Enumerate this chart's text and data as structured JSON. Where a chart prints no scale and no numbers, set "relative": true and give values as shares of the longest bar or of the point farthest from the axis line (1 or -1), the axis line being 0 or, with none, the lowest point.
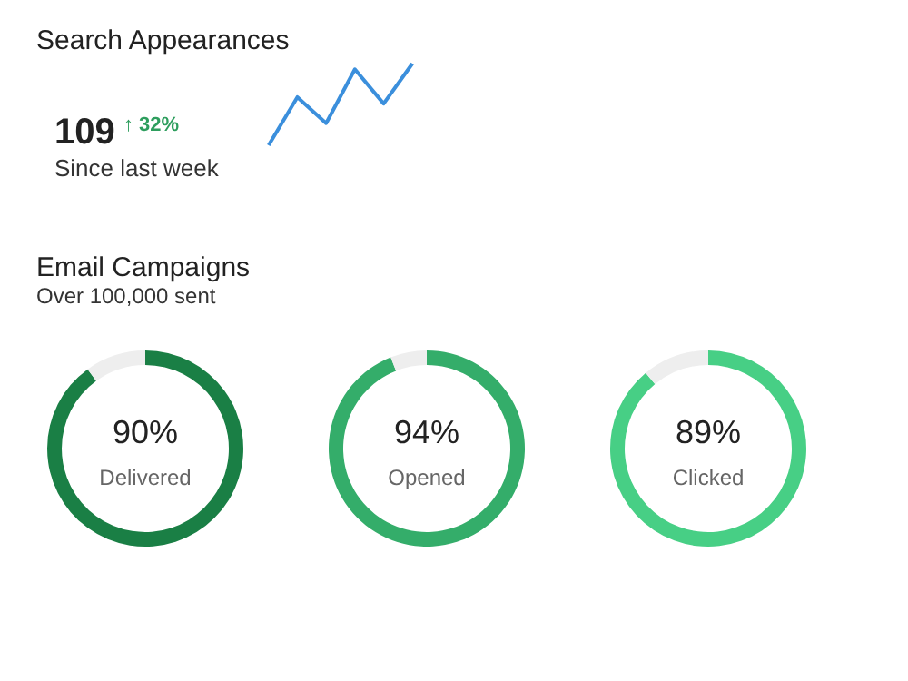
{
  "chart_data": [
    {
      "type": "line",
      "title": "Search Appearances",
      "relative": true,
      "categories": [
        null,
        null,
        null,
        null,
        null,
        null
      ],
      "series": [
        {
          "color": "#3b8fdc",
          "values": [
            0,
            0.59,
            0.27,
            0.93,
            0.51,
            1
          ]
        }
      ],
      "annotations": [
        "109",
        "↑ 32%",
        "Since last week"
      ]
    },
    {
      "type": "other",
      "title": "Email Campaigns",
      "subtitle": "Over 100,000 sent"
    },
    {
      "type": "donut",
      "categories": [
        "Delivered",
        null
      ],
      "values": [
        90,
        10
      ],
      "colors": [
        "#1a7f45",
        "#eeeeee"
      ],
      "value_labels": [
        "90%",
        null
      ]
    },
    {
      "type": "donut",
      "categories": [
        "Opened",
        null
      ],
      "values": [
        94,
        6
      ],
      "colors": [
        "#34ad6a",
        "#eeeeee"
      ],
      "value_labels": [
        "94%",
        null
      ]
    },
    {
      "type": "donut",
      "categories": [
        "Clicked",
        null
      ],
      "values": [
        89,
        11
      ],
      "colors": [
        "#47cf85",
        "#eeeeee"
      ],
      "value_labels": [
        "89%",
        null
      ]
    }
  ]
}
